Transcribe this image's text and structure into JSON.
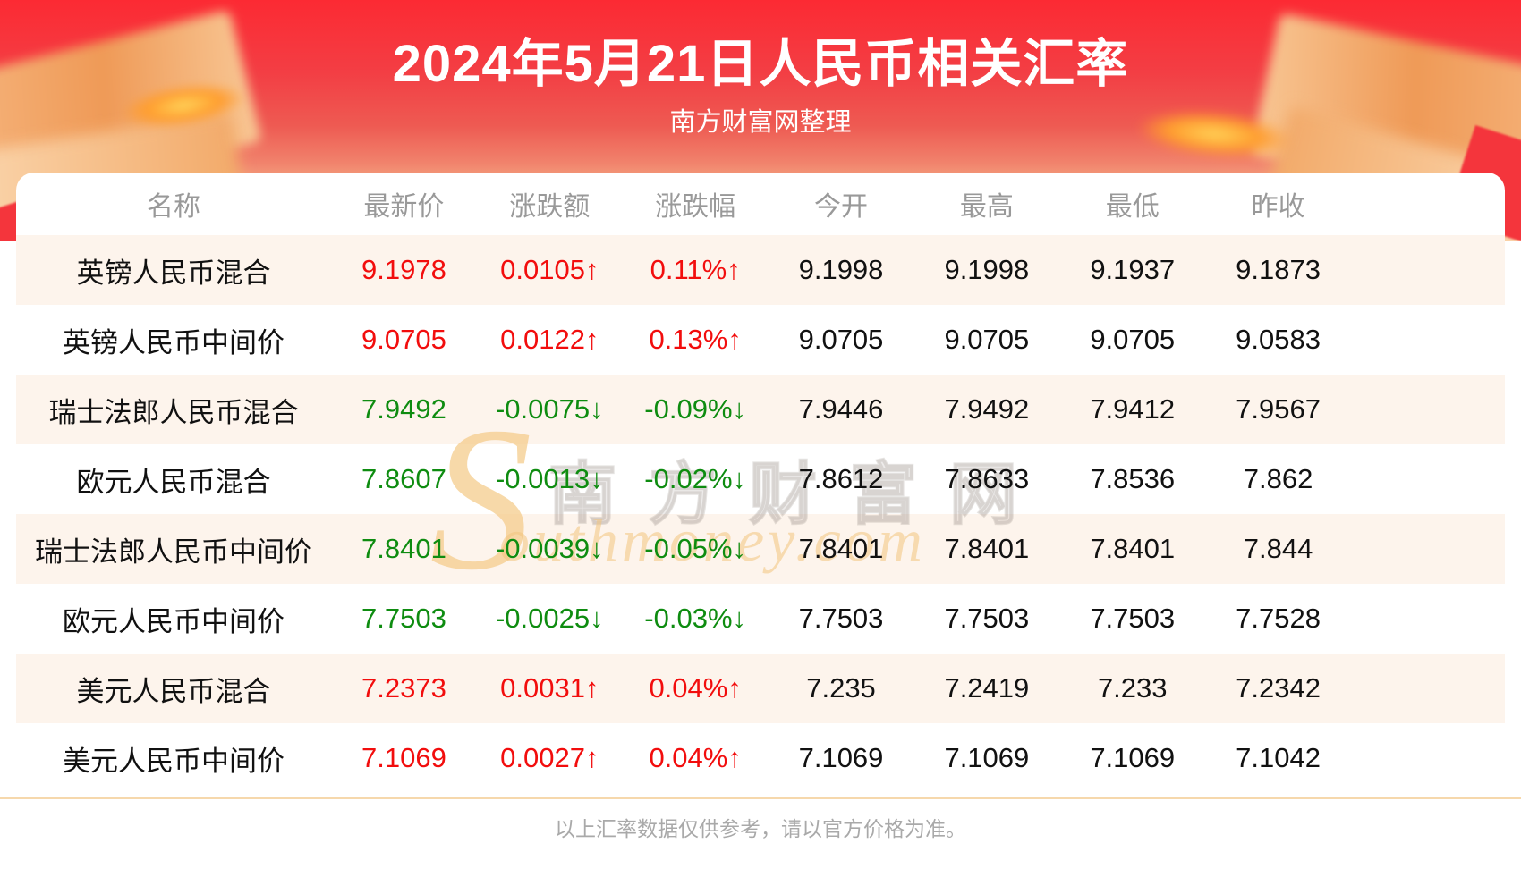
{
  "chart_data": {
    "type": "table",
    "title": "2024年5月21日人民币相关汇率",
    "subtitle": "南方财富网整理",
    "columns": [
      "名称",
      "最新价",
      "涨跌额",
      "涨跌幅",
      "今开",
      "最高",
      "最低",
      "昨收"
    ],
    "rows": [
      {
        "name": "英镑人民币混合",
        "latest": "9.1978",
        "change": "0.0105↑",
        "pct": "0.11%↑",
        "open": "9.1998",
        "high": "9.1998",
        "low": "9.1937",
        "prev_close": "9.1873",
        "trend": "up"
      },
      {
        "name": "英镑人民币中间价",
        "latest": "9.0705",
        "change": "0.0122↑",
        "pct": "0.13%↑",
        "open": "9.0705",
        "high": "9.0705",
        "low": "9.0705",
        "prev_close": "9.0583",
        "trend": "up"
      },
      {
        "name": "瑞士法郎人民币混合",
        "latest": "7.9492",
        "change": "-0.0075↓",
        "pct": "-0.09%↓",
        "open": "7.9446",
        "high": "7.9492",
        "low": "7.9412",
        "prev_close": "7.9567",
        "trend": "down"
      },
      {
        "name": "欧元人民币混合",
        "latest": "7.8607",
        "change": "-0.0013↓",
        "pct": "-0.02%↓",
        "open": "7.8612",
        "high": "7.8633",
        "low": "7.8536",
        "prev_close": "7.862",
        "trend": "down"
      },
      {
        "name": "瑞士法郎人民币中间价",
        "latest": "7.8401",
        "change": "-0.0039↓",
        "pct": "-0.05%↓",
        "open": "7.8401",
        "high": "7.8401",
        "low": "7.8401",
        "prev_close": "7.844",
        "trend": "down"
      },
      {
        "name": "欧元人民币中间价",
        "latest": "7.7503",
        "change": "-0.0025↓",
        "pct": "-0.03%↓",
        "open": "7.7503",
        "high": "7.7503",
        "low": "7.7503",
        "prev_close": "7.7528",
        "trend": "down"
      },
      {
        "name": "美元人民币混合",
        "latest": "7.2373",
        "change": "0.0031↑",
        "pct": "0.04%↑",
        "open": "7.235",
        "high": "7.2419",
        "low": "7.233",
        "prev_close": "7.2342",
        "trend": "up"
      },
      {
        "name": "美元人民币中间价",
        "latest": "7.1069",
        "change": "0.0027↑",
        "pct": "0.04%↑",
        "open": "7.1069",
        "high": "7.1069",
        "low": "7.1069",
        "prev_close": "7.1042",
        "trend": "up"
      }
    ]
  },
  "watermark": {
    "swash": "S",
    "cn": "南方财富网",
    "en": "outhmoney.com"
  },
  "footer": {
    "note": "以上汇率数据仅供参考，请以官方价格为准。"
  },
  "colors": {
    "up": "#f20d0d",
    "down": "#0e8c10",
    "banner_top": "#fc2a33",
    "banner_bottom": "#f8c492",
    "stripe": "#fdf4ec",
    "header_text": "#999999",
    "divider": "#f6d8ac",
    "footer_text": "#a9a9a9"
  }
}
